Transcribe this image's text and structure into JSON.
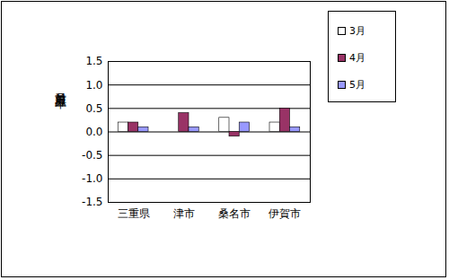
{
  "chart_data": {
    "type": "bar",
    "y_label": "対前月上昇率",
    "categories": [
      "三重県",
      "津市",
      "桑名市",
      "伊賀市"
    ],
    "series": [
      {
        "name": "3月",
        "color": "#ffffff",
        "values": [
          0.2,
          0.0,
          0.3,
          0.2
        ]
      },
      {
        "name": "4月",
        "color": "#993366",
        "values": [
          0.2,
          0.4,
          -0.1,
          0.5
        ]
      },
      {
        "name": "5月",
        "color": "#9999ff",
        "values": [
          0.1,
          0.1,
          0.2,
          0.1
        ]
      }
    ],
    "ylim": [
      -1.5,
      1.5
    ],
    "yticks": [
      -1.5,
      {
        "value": -1,
        "label": "-1.0"
      },
      -0.5,
      {
        "value": 0,
        "label": "0.0"
      },
      0.5,
      {
        "value": 1,
        "label": "1.0"
      },
      1.5
    ],
    "grid": true,
    "legend": "top-right"
  }
}
